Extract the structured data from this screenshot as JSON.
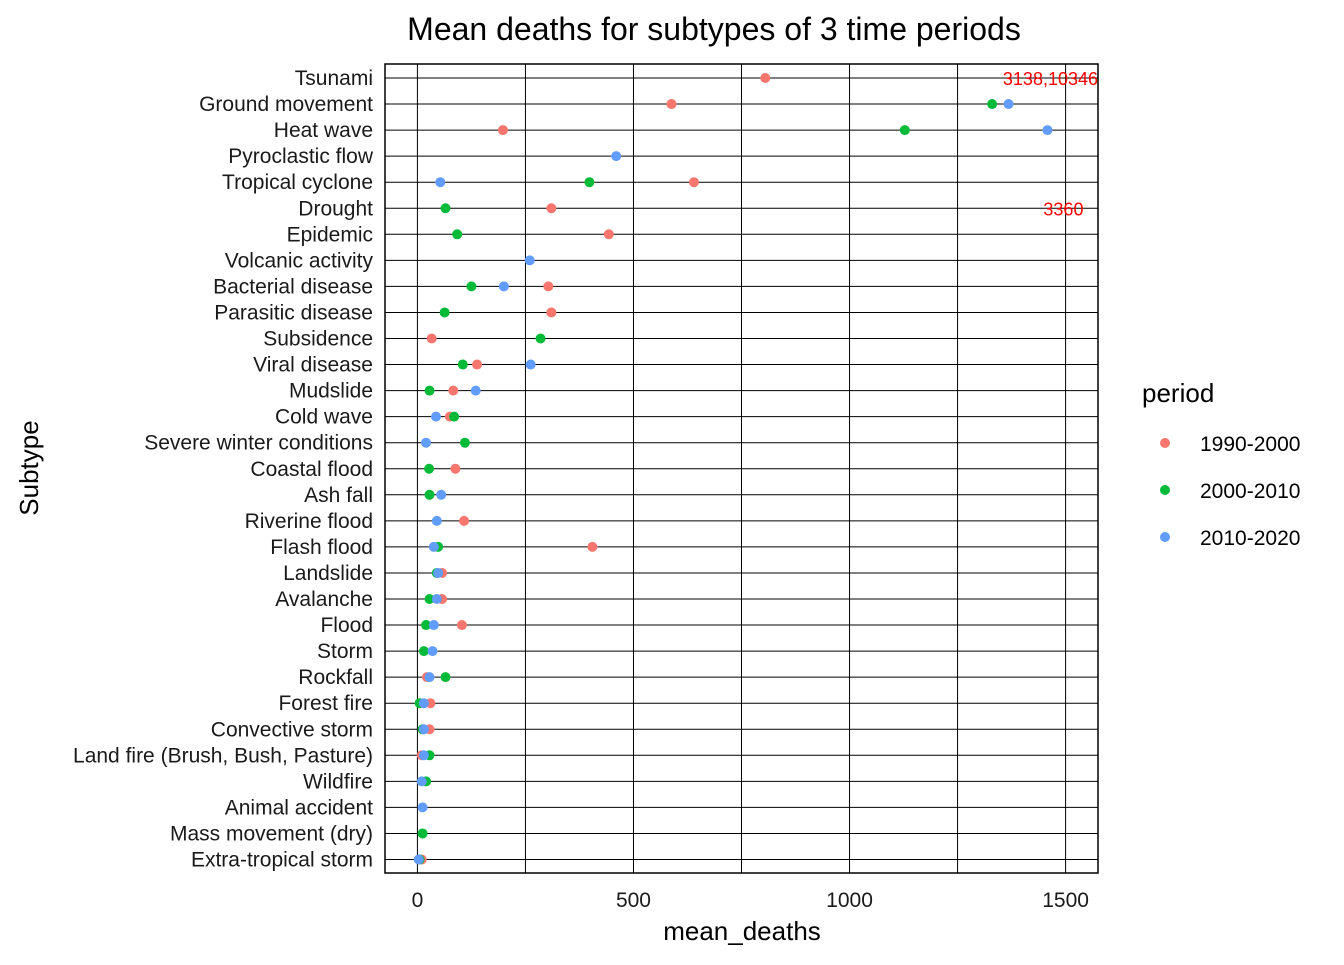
{
  "chart_data": {
    "type": "scatter",
    "title": "Mean deaths for subtypes of 3 time periods",
    "xlabel": "mean_deaths",
    "ylabel": "Subtype",
    "xlim": [
      -75,
      1575
    ],
    "xticks": [
      0,
      500,
      1000,
      1500
    ],
    "grid": true,
    "legend": {
      "title": "period",
      "position": "right",
      "entries": [
        "1990-2000",
        "2000-2010",
        "2010-2020"
      ]
    },
    "colors": {
      "1990-2000": "#F8766D",
      "2000-2010": "#00BA38",
      "2010-2020": "#619CFF"
    },
    "categories": [
      "Tsunami",
      "Ground movement",
      "Heat wave",
      "Pyroclastic flow",
      "Tropical cyclone",
      "Drought",
      "Epidemic",
      "Volcanic activity",
      "Bacterial disease",
      "Parasitic disease",
      "Subsidence",
      "Viral disease",
      "Mudslide",
      "Cold wave",
      "Severe winter conditions",
      "Coastal flood",
      "Ash fall",
      "Riverine flood",
      "Flash flood",
      "Landslide",
      "Avalanche",
      "Flood",
      "Storm",
      "Rockfall",
      "Forest fire",
      "Convective storm",
      "Land fire (Brush, Bush, Pasture)",
      "Wildfire",
      "Animal accident",
      "Mass movement (dry)",
      "Extra-tropical storm"
    ],
    "series": [
      {
        "name": "1990-2000",
        "values": [
          805,
          588,
          198,
          null,
          640,
          310,
          443,
          null,
          303,
          310,
          33,
          138,
          83,
          75,
          null,
          88,
          null,
          108,
          405,
          57,
          57,
          103,
          null,
          22,
          30,
          28,
          10,
          null,
          null,
          null,
          10
        ]
      },
      {
        "name": "2000-2010",
        "values": [
          null,
          1330,
          1128,
          null,
          398,
          65,
          92,
          null,
          125,
          63,
          285,
          105,
          28,
          85,
          110,
          27,
          28,
          null,
          48,
          45,
          28,
          20,
          15,
          65,
          5,
          12,
          28,
          20,
          null,
          12,
          5
        ]
      },
      {
        "name": "2010-2020",
        "values": [
          null,
          1368,
          1458,
          460,
          53,
          null,
          null,
          260,
          200,
          null,
          null,
          262,
          135,
          43,
          20,
          null,
          55,
          45,
          38,
          48,
          45,
          38,
          35,
          28,
          15,
          15,
          15,
          10,
          12,
          null,
          3
        ]
      }
    ],
    "annotations": [
      {
        "text": "3138,10346",
        "category": "Tsunami",
        "x": 1465,
        "color": "#FF0000"
      },
      {
        "text": "3360",
        "category": "Drought",
        "x": 1495,
        "color": "#FF0000"
      }
    ]
  }
}
